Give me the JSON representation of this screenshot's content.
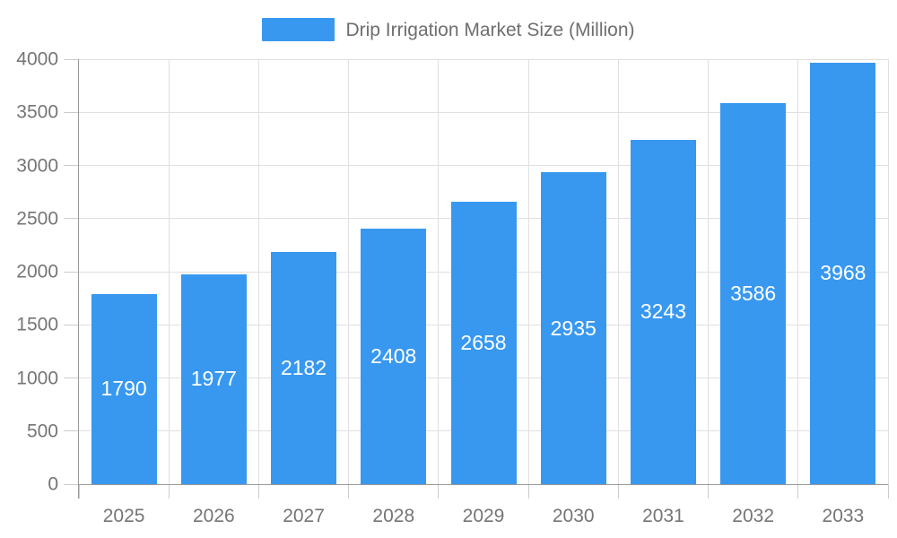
{
  "legend": {
    "label": "Drip Irrigation Market Size (Million)"
  },
  "chart_data": {
    "type": "bar",
    "title": "Drip Irrigation Market Size (Million)",
    "series_name": "Drip Irrigation Market Size (Million)",
    "categories": [
      "2025",
      "2026",
      "2027",
      "2028",
      "2029",
      "2030",
      "2031",
      "2032",
      "2033"
    ],
    "values": [
      1790,
      1977,
      2182,
      2408,
      2658,
      2935,
      3243,
      3586,
      3968
    ],
    "xlabel": "",
    "ylabel": "",
    "ylim": [
      0,
      4000
    ],
    "y_tick_step": 500,
    "y_ticks": [
      0,
      500,
      1000,
      1500,
      2000,
      2500,
      3000,
      3500,
      4000
    ],
    "grid": true,
    "legend_position": "top",
    "bar_labels_inside": true,
    "colors": {
      "bar": "#3898f0",
      "bar_label": "#ffffff",
      "axis_line": "#999999",
      "tick": "#cccccc",
      "grid_line": "#e0e0e0",
      "axis_label": "#757575",
      "legend_text": "#6e6e6e"
    }
  }
}
